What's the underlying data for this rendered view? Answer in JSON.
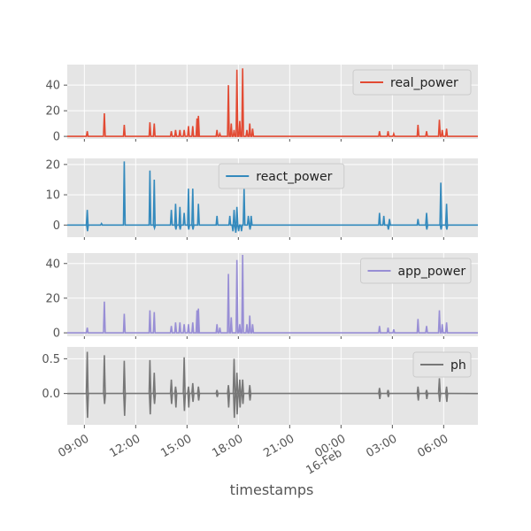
{
  "figure": {
    "xlabel": "timestamps",
    "x_range": [
      "2011-02-15T08:00",
      "2011-02-16T08:00"
    ],
    "x_ticks": [
      {
        "t": "2011-02-15T09:00",
        "label": "09:00"
      },
      {
        "t": "2011-02-15T12:00",
        "label": "12:00"
      },
      {
        "t": "2011-02-15T15:00",
        "label": "15:00"
      },
      {
        "t": "2011-02-15T18:00",
        "label": "18:00"
      },
      {
        "t": "2011-02-15T21:00",
        "label": "21:00"
      },
      {
        "t": "2011-02-16T00:00",
        "label": "00:00",
        "sublabel": "16-Feb"
      },
      {
        "t": "2011-02-16T03:00",
        "label": "03:00"
      },
      {
        "t": "2011-02-16T06:00",
        "label": "06:00"
      }
    ]
  },
  "chart_data": [
    {
      "type": "line",
      "series": [
        {
          "name": "real_power",
          "color": "#E24A33",
          "baseline": 0,
          "spikes": [
            [
              "09:10",
              4
            ],
            [
              "10:10",
              18
            ],
            [
              "11:20",
              9
            ],
            [
              "12:50",
              11
            ],
            [
              "13:05",
              10
            ],
            [
              "14:05",
              4
            ],
            [
              "14:20",
              5
            ],
            [
              "14:35",
              5
            ],
            [
              "14:50",
              5
            ],
            [
              "15:05",
              8
            ],
            [
              "15:20",
              8
            ],
            [
              "15:35",
              14
            ],
            [
              "15:40",
              16
            ],
            [
              "16:45",
              5
            ],
            [
              "16:55",
              2
            ],
            [
              "17:25",
              40
            ],
            [
              "17:35",
              10
            ],
            [
              "17:45",
              5
            ],
            [
              "17:55",
              52
            ],
            [
              "18:05",
              12
            ],
            [
              "18:15",
              53
            ],
            [
              "18:30",
              5
            ],
            [
              "18:40",
              10
            ],
            [
              "18:50",
              6
            ],
            [
              "02:15",
              4
            ],
            [
              "02:45",
              4
            ],
            [
              "03:05",
              2
            ],
            [
              "04:30",
              9
            ],
            [
              "05:00",
              4
            ],
            [
              "05:45",
              13
            ],
            [
              "05:55",
              5
            ],
            [
              "06:10",
              6
            ]
          ]
        }
      ],
      "ylim": [
        -2,
        56
      ],
      "yticks": [
        0,
        20,
        40
      ],
      "legend": "top-right",
      "grid": true
    },
    {
      "type": "line",
      "series": [
        {
          "name": "react_power",
          "color": "#348ABD",
          "baseline": 0,
          "spikes": [
            [
              "09:10",
              5
            ],
            [
              "10:00",
              0.5
            ],
            [
              "11:20",
              21
            ],
            [
              "12:50",
              18
            ],
            [
              "13:05",
              15
            ],
            [
              "14:05",
              5
            ],
            [
              "14:20",
              7
            ],
            [
              "14:35",
              6
            ],
            [
              "14:50",
              4
            ],
            [
              "15:05",
              12
            ],
            [
              "15:20",
              12
            ],
            [
              "15:40",
              7
            ],
            [
              "16:45",
              3
            ],
            [
              "17:30",
              3
            ],
            [
              "17:45",
              5
            ],
            [
              "17:55",
              6
            ],
            [
              "18:20",
              12
            ],
            [
              "18:35",
              3
            ],
            [
              "18:45",
              3
            ],
            [
              "02:15",
              4
            ],
            [
              "02:30",
              3
            ],
            [
              "02:50",
              2
            ],
            [
              "04:30",
              2
            ],
            [
              "05:00",
              4
            ],
            [
              "05:50",
              14
            ],
            [
              "06:10",
              7
            ]
          ],
          "dips": [
            [
              "09:10",
              -2
            ],
            [
              "13:05",
              -1
            ],
            [
              "14:20",
              -1.5
            ],
            [
              "14:35",
              -1.5
            ],
            [
              "15:05",
              -1.5
            ],
            [
              "15:20",
              -1.5
            ],
            [
              "17:40",
              -2
            ],
            [
              "17:50",
              -2.5
            ],
            [
              "18:00",
              -2
            ],
            [
              "18:10",
              -2
            ],
            [
              "18:40",
              -1.5
            ],
            [
              "02:45",
              -1.5
            ],
            [
              "05:00",
              -1.5
            ],
            [
              "05:50",
              -1.5
            ],
            [
              "06:10",
              -1.5
            ]
          ]
        }
      ],
      "ylim": [
        -4,
        22
      ],
      "yticks": [
        0,
        10,
        20
      ],
      "legend": "top-center",
      "grid": true
    },
    {
      "type": "line",
      "series": [
        {
          "name": "app_power",
          "color": "#988ED5",
          "baseline": 0,
          "spikes": [
            [
              "09:10",
              3
            ],
            [
              "10:10",
              18
            ],
            [
              "11:20",
              11
            ],
            [
              "12:50",
              13
            ],
            [
              "13:05",
              12
            ],
            [
              "14:05",
              4
            ],
            [
              "14:20",
              6
            ],
            [
              "14:35",
              6
            ],
            [
              "14:50",
              5
            ],
            [
              "15:05",
              5
            ],
            [
              "15:20",
              6
            ],
            [
              "15:35",
              13
            ],
            [
              "15:40",
              14
            ],
            [
              "16:45",
              5
            ],
            [
              "16:55",
              3
            ],
            [
              "17:25",
              34
            ],
            [
              "17:35",
              9
            ],
            [
              "17:55",
              42
            ],
            [
              "18:05",
              5
            ],
            [
              "18:15",
              45
            ],
            [
              "18:30",
              5
            ],
            [
              "18:40",
              10
            ],
            [
              "18:50",
              5
            ],
            [
              "02:15",
              4
            ],
            [
              "02:45",
              3
            ],
            [
              "03:05",
              2
            ],
            [
              "04:30",
              8
            ],
            [
              "05:00",
              4
            ],
            [
              "05:45",
              13
            ],
            [
              "05:55",
              5
            ],
            [
              "06:10",
              6
            ]
          ]
        }
      ],
      "ylim": [
        -2,
        46
      ],
      "yticks": [
        0,
        20,
        40
      ],
      "legend": "top-right",
      "grid": true
    },
    {
      "type": "line",
      "series": [
        {
          "name": "ph",
          "color": "#777777",
          "baseline": 0,
          "spikes": [
            [
              "09:10",
              0.6
            ],
            [
              "10:10",
              0.55
            ],
            [
              "11:20",
              0.47
            ],
            [
              "12:50",
              0.48
            ],
            [
              "13:05",
              0.3
            ],
            [
              "14:05",
              0.2
            ],
            [
              "14:20",
              0.1
            ],
            [
              "14:50",
              0.52
            ],
            [
              "15:05",
              0.1
            ],
            [
              "15:20",
              0.15
            ],
            [
              "15:40",
              0.1
            ],
            [
              "16:45",
              0.05
            ],
            [
              "17:25",
              0.12
            ],
            [
              "17:45",
              0.5
            ],
            [
              "17:55",
              0.3
            ],
            [
              "18:05",
              0.2
            ],
            [
              "18:15",
              0.2
            ],
            [
              "18:40",
              0.12
            ],
            [
              "02:15",
              0.08
            ],
            [
              "02:45",
              0.05
            ],
            [
              "04:30",
              0.1
            ],
            [
              "05:00",
              0.05
            ],
            [
              "05:45",
              0.22
            ],
            [
              "06:10",
              0.1
            ]
          ],
          "dips": [
            [
              "09:10",
              -0.35
            ],
            [
              "10:10",
              -0.15
            ],
            [
              "11:20",
              -0.32
            ],
            [
              "12:50",
              -0.3
            ],
            [
              "13:05",
              -0.15
            ],
            [
              "14:05",
              -0.15
            ],
            [
              "14:20",
              -0.2
            ],
            [
              "14:50",
              -0.25
            ],
            [
              "15:05",
              -0.2
            ],
            [
              "15:20",
              -0.12
            ],
            [
              "15:40",
              -0.1
            ],
            [
              "16:45",
              -0.05
            ],
            [
              "17:25",
              -0.2
            ],
            [
              "17:45",
              -0.35
            ],
            [
              "17:55",
              -0.3
            ],
            [
              "18:05",
              -0.2
            ],
            [
              "18:15",
              -0.15
            ],
            [
              "18:40",
              -0.1
            ],
            [
              "02:15",
              -0.08
            ],
            [
              "02:45",
              -0.05
            ],
            [
              "04:30",
              -0.1
            ],
            [
              "05:00",
              -0.08
            ],
            [
              "05:45",
              -0.12
            ],
            [
              "06:10",
              -0.12
            ]
          ]
        }
      ],
      "ylim": [
        -0.45,
        0.67
      ],
      "yticks": [
        0.0,
        0.5
      ],
      "yticklabels": [
        "0.0",
        "0.5"
      ],
      "legend": "top-right",
      "grid": true
    }
  ]
}
